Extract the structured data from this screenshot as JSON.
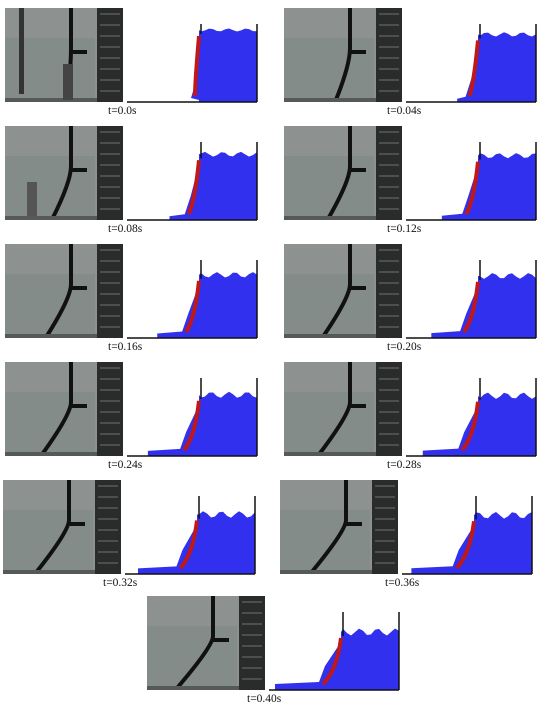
{
  "figure": {
    "palette": {
      "water": "#3030ee",
      "gate": "#c01818",
      "wall": "#111111",
      "photo_background": "#8d9290",
      "photo_dark_frame": "#2a2c2b"
    },
    "frames": [
      {
        "label": "t=0.0s"
      },
      {
        "label": "t=0.04s"
      },
      {
        "label": "t=0.08s"
      },
      {
        "label": "t=0.12s"
      },
      {
        "label": "t=0.16s"
      },
      {
        "label": "t=0.20s"
      },
      {
        "label": "t=0.24s"
      },
      {
        "label": "t=0.28s"
      },
      {
        "label": "t=0.32s"
      },
      {
        "label": "t=0.36s"
      },
      {
        "label": "t=0.40s"
      }
    ]
  }
}
